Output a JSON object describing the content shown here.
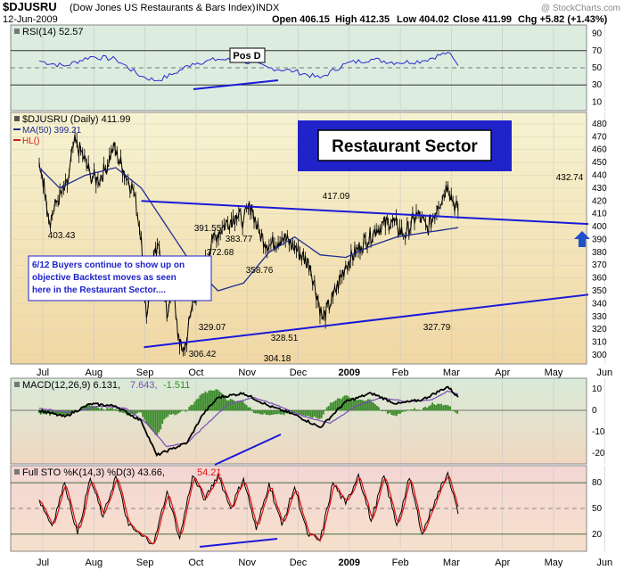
{
  "header": {
    "symbol": "$DJUSRU",
    "name": "(Dow Jones US Restaurants & Bars Index)",
    "exchange": "INDX",
    "date": "12-Jun-2009",
    "open": "Open 406.15",
    "high": "High 412.35",
    "low": "Low 404.02",
    "close": "Close 411.99",
    "change": "Chg +5.82 (+1.43%)",
    "watermark": "@ StockCharts.com"
  },
  "colors": {
    "price_bg_top": "#f5f2cf",
    "price_bg_bottom": "#f2d9a6",
    "rsi_bg": "#dcecdf",
    "macd_bg": "#dcecdf",
    "sto_bg": "#f4d4cf",
    "price_line": "#000000",
    "ma_line": "#1d2c8f",
    "trendline": "#1a1ad8",
    "banner_bg": "#1f23c9",
    "hist": "#3c8a2b",
    "signal": "#7a4bb8",
    "sto_d": "#e01010",
    "arrow": "#1f4fc9"
  },
  "annotations": {
    "title": "Restaurant Sector",
    "pos_d": "Pos D",
    "note_lines": [
      "6/12  Buyers continue to show up on",
      "objective Backtest moves as seen",
      "here in the Restaurant Sector...."
    ],
    "arrow_icon": "up-arrow-icon"
  },
  "rsi": {
    "label": "RSI(14) 52.57",
    "ticks": [
      "90",
      "70",
      "50",
      "30",
      "10"
    ]
  },
  "price": {
    "legend_main": "$DJUSRU (Daily) 411.99",
    "legend_ma": "MA(50) 399.21",
    "legend_hl": "HL()",
    "ticks": [
      "480",
      "470",
      "460",
      "450",
      "440",
      "430",
      "420",
      "410",
      "400",
      "390",
      "380",
      "370",
      "360",
      "350",
      "340",
      "330",
      "320",
      "310",
      "300"
    ],
    "point_labels": [
      "403.43",
      "391.55",
      "383.77",
      "372.68",
      "358.76",
      "329.07",
      "328.51",
      "306.42",
      "304.18",
      "417.09",
      "327.79",
      "432.74"
    ]
  },
  "macd": {
    "label_main": "MACD(12,26,9) 6.131,",
    "label_signal": "7.643,",
    "label_hist": "-1.511",
    "ticks": [
      "10",
      "0",
      "-10",
      "-20"
    ]
  },
  "sto": {
    "label_main": "Full STO %K(14,3) %D(3) 43.66,",
    "label_d": "54.21",
    "ticks": [
      "80",
      "50",
      "20"
    ]
  },
  "xaxis": {
    "labels": [
      "Jul",
      "Aug",
      "Sep",
      "Oct",
      "Nov",
      "Dec",
      "2009",
      "Feb",
      "Mar",
      "Apr",
      "May",
      "Jun"
    ]
  },
  "chart_data": {
    "type": "line",
    "x_anchor_labels": [
      "Jul",
      "Aug",
      "Sep",
      "Oct",
      "Nov",
      "Dec",
      "2009",
      "Feb",
      "Mar",
      "Apr",
      "May",
      "Jun"
    ],
    "price_keypoints": [
      {
        "x": 0.0,
        "y": 450
      },
      {
        "x": 0.06,
        "y": 440
      },
      {
        "x": 0.13,
        "y": 425
      },
      {
        "x": 0.2,
        "y": 403.43
      },
      {
        "x": 0.35,
        "y": 420
      },
      {
        "x": 0.55,
        "y": 432
      },
      {
        "x": 0.68,
        "y": 466
      },
      {
        "x": 0.85,
        "y": 456
      },
      {
        "x": 1.0,
        "y": 440
      },
      {
        "x": 1.15,
        "y": 436
      },
      {
        "x": 1.3,
        "y": 445
      },
      {
        "x": 1.45,
        "y": 462
      },
      {
        "x": 1.65,
        "y": 444
      },
      {
        "x": 1.85,
        "y": 428
      },
      {
        "x": 2.0,
        "y": 391.55
      },
      {
        "x": 2.1,
        "y": 329.07
      },
      {
        "x": 2.22,
        "y": 372.68
      },
      {
        "x": 2.35,
        "y": 383.77
      },
      {
        "x": 2.5,
        "y": 328.51
      },
      {
        "x": 2.6,
        "y": 358.76
      },
      {
        "x": 2.75,
        "y": 306.42
      },
      {
        "x": 2.85,
        "y": 304.18
      },
      {
        "x": 3.0,
        "y": 340
      },
      {
        "x": 3.2,
        "y": 365
      },
      {
        "x": 3.4,
        "y": 390
      },
      {
        "x": 3.6,
        "y": 400
      },
      {
        "x": 3.85,
        "y": 409
      },
      {
        "x": 4.0,
        "y": 405
      },
      {
        "x": 4.15,
        "y": 417.09
      },
      {
        "x": 4.3,
        "y": 395
      },
      {
        "x": 4.5,
        "y": 385
      },
      {
        "x": 4.75,
        "y": 392
      },
      {
        "x": 5.0,
        "y": 384
      },
      {
        "x": 5.3,
        "y": 370
      },
      {
        "x": 5.55,
        "y": 327.79
      },
      {
        "x": 5.75,
        "y": 345
      },
      {
        "x": 6.0,
        "y": 370
      },
      {
        "x": 6.3,
        "y": 385
      },
      {
        "x": 6.6,
        "y": 398
      },
      {
        "x": 6.9,
        "y": 405
      },
      {
        "x": 7.15,
        "y": 393
      },
      {
        "x": 7.4,
        "y": 410
      },
      {
        "x": 7.6,
        "y": 398
      },
      {
        "x": 7.8,
        "y": 416
      },
      {
        "x": 8.0,
        "y": 432.74
      },
      {
        "x": 8.1,
        "y": 420
      },
      {
        "x": 8.2,
        "y": 411.99
      }
    ],
    "ma50_keypoints": [
      {
        "x": 0.0,
        "y": 446
      },
      {
        "x": 0.4,
        "y": 430
      },
      {
        "x": 0.9,
        "y": 440
      },
      {
        "x": 1.5,
        "y": 446
      },
      {
        "x": 2.0,
        "y": 430
      },
      {
        "x": 2.5,
        "y": 400
      },
      {
        "x": 3.0,
        "y": 370
      },
      {
        "x": 3.5,
        "y": 350
      },
      {
        "x": 4.0,
        "y": 356
      },
      {
        "x": 4.5,
        "y": 380
      },
      {
        "x": 5.0,
        "y": 392
      },
      {
        "x": 5.5,
        "y": 378
      },
      {
        "x": 6.0,
        "y": 376
      },
      {
        "x": 6.5,
        "y": 385
      },
      {
        "x": 7.0,
        "y": 392
      },
      {
        "x": 7.5,
        "y": 395
      },
      {
        "x": 8.0,
        "y": 398
      },
      {
        "x": 8.2,
        "y": 399.21
      }
    ],
    "trendlines": [
      {
        "from": {
          "x": 2.0,
          "y": 420
        },
        "to": {
          "x": 8.2,
          "y": 402
        }
      },
      {
        "from": {
          "x": 2.05,
          "y": 306
        },
        "to": {
          "x": 8.2,
          "y": 347
        }
      }
    ],
    "rsi": {
      "value": 52.57,
      "ylim": [
        0,
        100
      ],
      "guides": [
        70,
        50,
        30
      ],
      "keypoints": [
        {
          "x": 0.0,
          "y": 58
        },
        {
          "x": 0.5,
          "y": 52
        },
        {
          "x": 1.0,
          "y": 63
        },
        {
          "x": 1.5,
          "y": 60
        },
        {
          "x": 2.0,
          "y": 40
        },
        {
          "x": 2.3,
          "y": 35
        },
        {
          "x": 2.6,
          "y": 42
        },
        {
          "x": 3.0,
          "y": 55
        },
        {
          "x": 3.5,
          "y": 60
        },
        {
          "x": 4.0,
          "y": 58
        },
        {
          "x": 4.5,
          "y": 50
        },
        {
          "x": 5.0,
          "y": 46
        },
        {
          "x": 5.5,
          "y": 38
        },
        {
          "x": 6.0,
          "y": 55
        },
        {
          "x": 6.5,
          "y": 60
        },
        {
          "x": 7.0,
          "y": 56
        },
        {
          "x": 7.5,
          "y": 58
        },
        {
          "x": 8.0,
          "y": 68
        },
        {
          "x": 8.2,
          "y": 52.57
        }
      ]
    },
    "macd": {
      "values": [
        6.131,
        7.643,
        -1.511
      ],
      "ylim": [
        -25,
        15
      ],
      "macd_keypoints": [
        {
          "x": 0.0,
          "y": 0
        },
        {
          "x": 0.5,
          "y": -3
        },
        {
          "x": 1.0,
          "y": 3
        },
        {
          "x": 1.5,
          "y": 2
        },
        {
          "x": 2.0,
          "y": -5
        },
        {
          "x": 2.3,
          "y": -21
        },
        {
          "x": 2.6,
          "y": -18
        },
        {
          "x": 2.9,
          "y": -15
        },
        {
          "x": 3.2,
          "y": -2
        },
        {
          "x": 3.5,
          "y": 6
        },
        {
          "x": 4.0,
          "y": 8
        },
        {
          "x": 4.5,
          "y": 2
        },
        {
          "x": 5.0,
          "y": -2
        },
        {
          "x": 5.5,
          "y": -8
        },
        {
          "x": 6.0,
          "y": 4
        },
        {
          "x": 6.5,
          "y": 8
        },
        {
          "x": 7.0,
          "y": 3
        },
        {
          "x": 7.5,
          "y": 5
        },
        {
          "x": 8.0,
          "y": 11
        },
        {
          "x": 8.2,
          "y": 6.131
        }
      ],
      "signal_keypoints": [
        {
          "x": 0.0,
          "y": 1
        },
        {
          "x": 0.6,
          "y": -1
        },
        {
          "x": 1.2,
          "y": 2
        },
        {
          "x": 1.7,
          "y": 1
        },
        {
          "x": 2.1,
          "y": -6
        },
        {
          "x": 2.5,
          "y": -17
        },
        {
          "x": 2.9,
          "y": -15
        },
        {
          "x": 3.3,
          "y": -6
        },
        {
          "x": 3.7,
          "y": 3
        },
        {
          "x": 4.2,
          "y": 6
        },
        {
          "x": 4.7,
          "y": 2
        },
        {
          "x": 5.2,
          "y": -3
        },
        {
          "x": 5.7,
          "y": -6
        },
        {
          "x": 6.2,
          "y": 2
        },
        {
          "x": 6.7,
          "y": 6
        },
        {
          "x": 7.2,
          "y": 4
        },
        {
          "x": 7.7,
          "y": 5
        },
        {
          "x": 8.0,
          "y": 9
        },
        {
          "x": 8.2,
          "y": 7.643
        }
      ]
    },
    "stochastic": {
      "values": [
        43.66,
        54.21
      ],
      "ylim": [
        0,
        100
      ],
      "guides": [
        80,
        50,
        20
      ],
      "k_keypoints": [
        {
          "x": 0.0,
          "y": 60
        },
        {
          "x": 0.25,
          "y": 30
        },
        {
          "x": 0.5,
          "y": 80
        },
        {
          "x": 0.75,
          "y": 20
        },
        {
          "x": 1.0,
          "y": 85
        },
        {
          "x": 1.25,
          "y": 40
        },
        {
          "x": 1.5,
          "y": 88
        },
        {
          "x": 1.75,
          "y": 30
        },
        {
          "x": 2.0,
          "y": 18
        },
        {
          "x": 2.25,
          "y": 10
        },
        {
          "x": 2.5,
          "y": 70
        },
        {
          "x": 2.75,
          "y": 15
        },
        {
          "x": 3.0,
          "y": 88
        },
        {
          "x": 3.25,
          "y": 60
        },
        {
          "x": 3.5,
          "y": 90
        },
        {
          "x": 3.75,
          "y": 50
        },
        {
          "x": 4.0,
          "y": 85
        },
        {
          "x": 4.25,
          "y": 25
        },
        {
          "x": 4.5,
          "y": 80
        },
        {
          "x": 4.75,
          "y": 30
        },
        {
          "x": 5.0,
          "y": 75
        },
        {
          "x": 5.25,
          "y": 20
        },
        {
          "x": 5.5,
          "y": 12
        },
        {
          "x": 5.75,
          "y": 80
        },
        {
          "x": 6.0,
          "y": 55
        },
        {
          "x": 6.25,
          "y": 90
        },
        {
          "x": 6.5,
          "y": 35
        },
        {
          "x": 6.75,
          "y": 88
        },
        {
          "x": 7.0,
          "y": 30
        },
        {
          "x": 7.25,
          "y": 85
        },
        {
          "x": 7.5,
          "y": 20
        },
        {
          "x": 7.75,
          "y": 60
        },
        {
          "x": 8.0,
          "y": 92
        },
        {
          "x": 8.2,
          "y": 43.66
        }
      ]
    }
  }
}
